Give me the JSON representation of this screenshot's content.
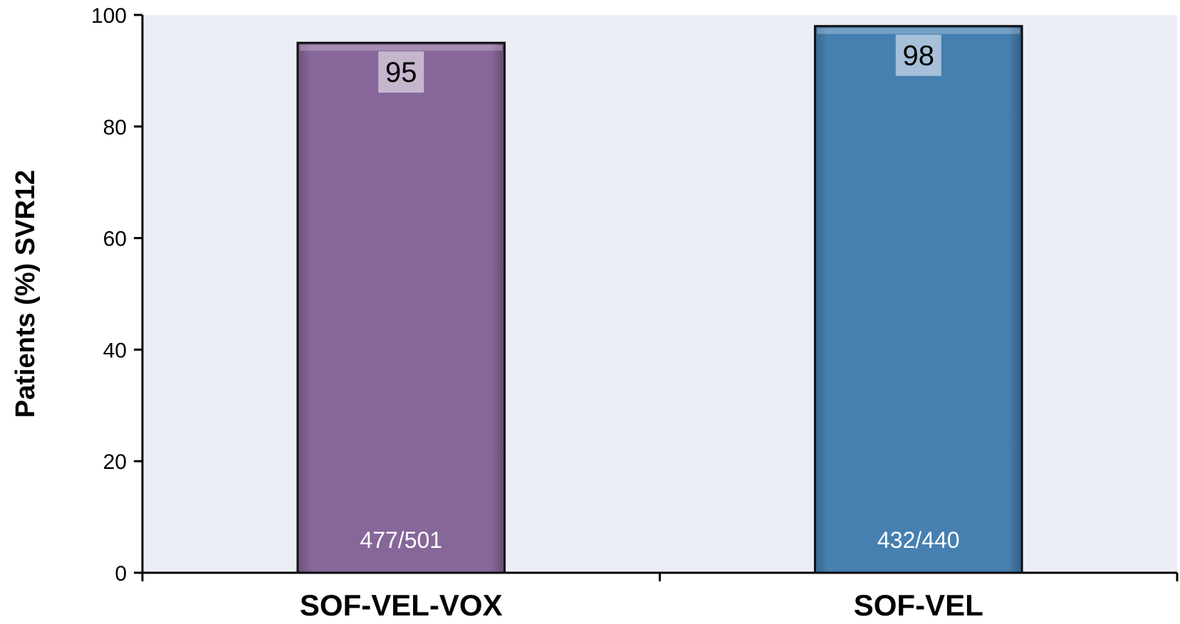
{
  "chart_data": {
    "type": "bar",
    "title": "",
    "xlabel": "",
    "ylabel": "Patients (%) SVR12",
    "categories": [
      "SOF-VEL-VOX",
      "SOF-VEL"
    ],
    "values": [
      95,
      98
    ],
    "value_labels": [
      "95",
      "98"
    ],
    "count_labels": [
      "477/501",
      "432/440"
    ],
    "ylim": [
      0,
      100
    ],
    "yticks": [
      0,
      20,
      40,
      60,
      80,
      100
    ],
    "grid": false,
    "legend": "none",
    "colors": {
      "bars": [
        "#87679A",
        "#4680B0"
      ],
      "value_label_boxes": [
        "#C5B6CE",
        "#A5C0D8"
      ],
      "plot_background": "#EBEEF6",
      "axis": "#000000"
    }
  }
}
